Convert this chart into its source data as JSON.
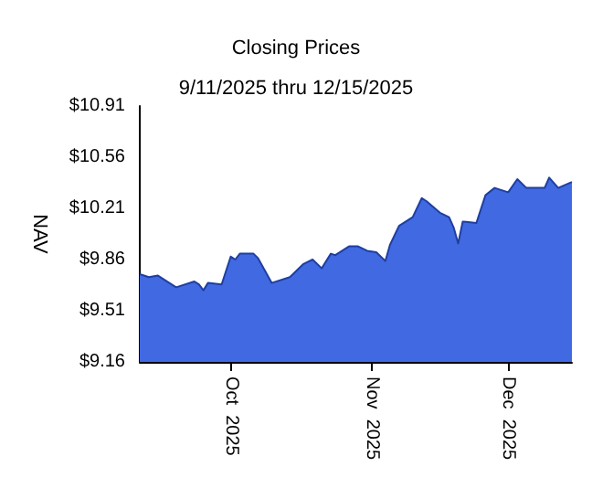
{
  "chart_data": {
    "type": "area",
    "title": "Closing Prices",
    "subtitle": "9/11/2025 thru 12/15/2025",
    "ylabel": "NAV",
    "x": [
      "2025-09-11",
      "2025-09-13",
      "2025-09-15",
      "2025-09-19",
      "2025-09-23",
      "2025-09-24",
      "2025-09-25",
      "2025-09-26",
      "2025-09-29",
      "2025-10-01",
      "2025-10-02",
      "2025-10-03",
      "2025-10-06",
      "2025-10-07",
      "2025-10-10",
      "2025-10-14",
      "2025-10-17",
      "2025-10-19",
      "2025-10-21",
      "2025-10-23",
      "2025-10-24",
      "2025-10-27",
      "2025-10-29",
      "2025-10-31",
      "2025-11-02",
      "2025-11-04",
      "2025-11-05",
      "2025-11-07",
      "2025-11-10",
      "2025-11-12",
      "2025-11-13",
      "2025-11-16",
      "2025-11-18",
      "2025-11-19",
      "2025-11-20",
      "2025-11-21",
      "2025-11-24",
      "2025-11-26",
      "2025-11-28",
      "2025-12-01",
      "2025-12-03",
      "2025-12-05",
      "2025-12-09",
      "2025-12-10",
      "2025-12-12",
      "2025-12-15"
    ],
    "series": [
      {
        "color": "#4169e1",
        "values": [
          9.76,
          9.74,
          9.75,
          9.67,
          9.71,
          9.69,
          9.65,
          9.7,
          9.69,
          9.88,
          9.86,
          9.9,
          9.9,
          9.87,
          9.7,
          9.74,
          9.83,
          9.86,
          9.8,
          9.9,
          9.89,
          9.95,
          9.95,
          9.92,
          9.91,
          9.85,
          9.96,
          10.09,
          10.15,
          10.28,
          10.26,
          10.18,
          10.15,
          10.08,
          9.97,
          10.12,
          10.11,
          10.3,
          10.35,
          10.32,
          10.41,
          10.35,
          10.35,
          10.42,
          10.35,
          10.39
        ]
      }
    ],
    "xlim": [
      "2025-09-11",
      "2025-12-15"
    ],
    "xticks": [
      {
        "value": "2025-10-01",
        "label": "Oct  2025"
      },
      {
        "value": "2025-11-01",
        "label": "Nov  2025"
      },
      {
        "value": "2025-12-01",
        "label": "Dec  2025"
      }
    ],
    "ylim": [
      9.16,
      10.91
    ],
    "yticks": [
      {
        "value": 9.16,
        "label": "$9.16"
      },
      {
        "value": 9.51,
        "label": "$9.51"
      },
      {
        "value": 9.86,
        "label": "$9.86"
      },
      {
        "value": 10.21,
        "label": "$10.21"
      },
      {
        "value": 10.56,
        "label": "$10.56"
      },
      {
        "value": 10.91,
        "label": "$10.91"
      }
    ],
    "grid": false
  }
}
